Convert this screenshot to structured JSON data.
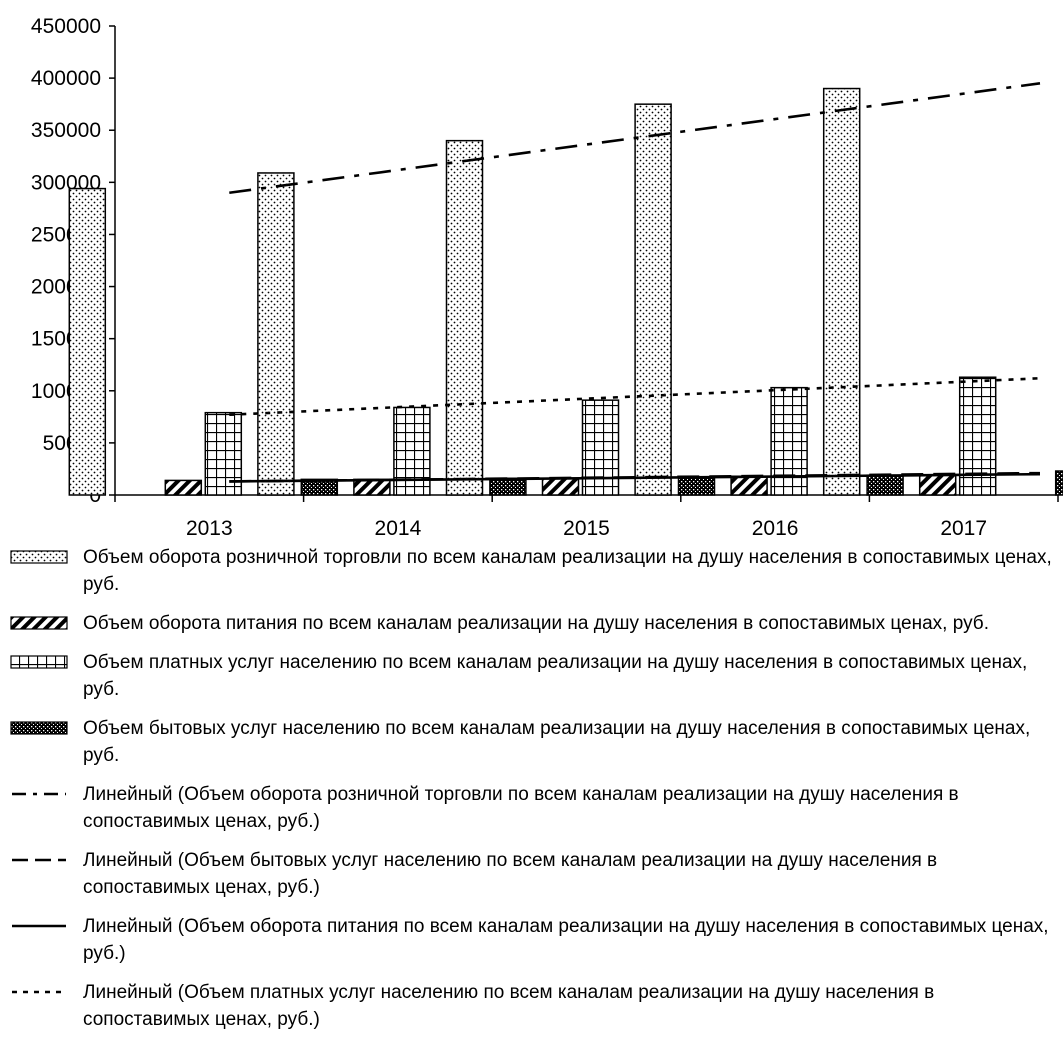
{
  "chart_data": {
    "type": "bar",
    "categories": [
      "2013",
      "2014",
      "2015",
      "2016",
      "2017"
    ],
    "ylim": [
      0,
      450000
    ],
    "yticks": [
      0,
      50000,
      100000,
      150000,
      200000,
      250000,
      300000,
      350000,
      400000,
      450000
    ],
    "ytick_labels": [
      "0",
      "50000",
      "100000",
      "150000",
      "200000",
      "250000",
      "300000",
      "350000",
      "400000",
      "450000"
    ],
    "grid": false,
    "legend_position": "bottom",
    "series": [
      {
        "name": "Объем оборота розничной торговли по всем каналам реализации на душу населения в сопоставимых ценах, руб.",
        "pattern": "dots",
        "values": [
          294000,
          309000,
          340000,
          375000,
          390000
        ]
      },
      {
        "name": "Объем оборота питания по всем каналам реализации на душу населения  в сопоставимых ценах, руб.",
        "pattern": "diagonal",
        "values": [
          14000,
          15000,
          16000,
          18000,
          19000
        ]
      },
      {
        "name": "Объем платных услуг населению по всем каналам реализации на душу населения  в сопоставимых ценах, руб.",
        "pattern": "grid",
        "values": [
          79000,
          84000,
          91000,
          103000,
          113000
        ]
      },
      {
        "name": "Объем бытовых услуг населению по всем каналам реализации на душу населения  в сопоставимых ценах, руб.",
        "pattern": "dense",
        "values": [
          15000,
          16000,
          17000,
          19000,
          23000
        ]
      }
    ],
    "trendlines": [
      {
        "name": "Линейный (Объем оборота розничной торговли по всем каналам реализации на душу населения в сопоставимых ценах, руб.)",
        "style": "dash-dot",
        "start": 290000,
        "end": 395000
      },
      {
        "name": "Линейный (Объем бытовых услуг населению по всем каналам реализации на душу населения  в сопоставимых ценах, руб.)",
        "style": "long-dash",
        "start": 13000,
        "end": 21000
      },
      {
        "name": "Линейный (Объем оборота питания по всем каналам реализации на душу населения  в сопоставимых ценах, руб.)",
        "style": "solid",
        "start": 13000,
        "end": 20000
      },
      {
        "name": "Линейный (Объем платных услуг населению по всем каналам реализации на душу населения  в сопоставимых ценах, руб.)",
        "style": "dotted",
        "start": 77000,
        "end": 112000
      }
    ]
  }
}
